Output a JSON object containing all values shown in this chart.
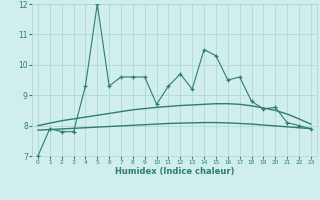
{
  "xlabel": "Humidex (Indice chaleur)",
  "x": [
    0,
    1,
    2,
    3,
    4,
    5,
    6,
    7,
    8,
    9,
    10,
    11,
    12,
    13,
    14,
    15,
    16,
    17,
    18,
    19,
    20,
    21,
    22,
    23
  ],
  "y_main": [
    7.0,
    7.9,
    7.8,
    7.8,
    9.3,
    12.0,
    9.3,
    9.6,
    9.6,
    9.6,
    8.7,
    9.3,
    9.7,
    9.2,
    10.5,
    10.3,
    9.5,
    9.6,
    8.8,
    8.55,
    8.6,
    8.1,
    8.0,
    7.9
  ],
  "y_trend1": [
    8.0,
    8.08,
    8.16,
    8.22,
    8.28,
    8.34,
    8.4,
    8.46,
    8.52,
    8.56,
    8.6,
    8.63,
    8.66,
    8.68,
    8.7,
    8.72,
    8.72,
    8.7,
    8.65,
    8.58,
    8.5,
    8.38,
    8.22,
    8.05
  ],
  "y_trend2": [
    7.85,
    7.87,
    7.89,
    7.91,
    7.93,
    7.95,
    7.97,
    7.99,
    8.01,
    8.03,
    8.05,
    8.07,
    8.08,
    8.09,
    8.1,
    8.1,
    8.09,
    8.07,
    8.05,
    8.02,
    7.99,
    7.96,
    7.93,
    7.9
  ],
  "line_color": "#2e7d6e",
  "bg_color": "#d0eeeb",
  "grid_color": "#aed4cf",
  "ylim": [
    7,
    12
  ],
  "yticks": [
    7,
    8,
    9,
    10,
    11,
    12
  ],
  "xlim": [
    -0.5,
    23.5
  ]
}
